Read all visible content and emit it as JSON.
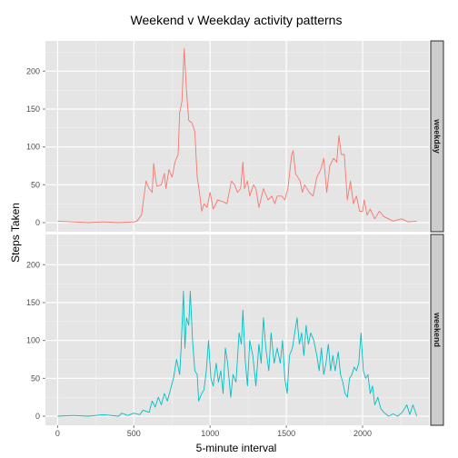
{
  "chart_data": {
    "type": "line",
    "title": "Weekend v Weekday activity patterns",
    "xlabel": "5-minute interval",
    "ylabel": "Steps Taken",
    "xlim": [
      -80,
      2435
    ],
    "ylim": [
      -12,
      240
    ],
    "x_ticks": [
      0,
      500,
      1000,
      1500,
      2000
    ],
    "y_ticks": [
      0,
      50,
      100,
      150,
      200
    ],
    "grid": true,
    "legend": "none",
    "facets": [
      {
        "label": "weekday",
        "color": "#F8766D",
        "points": [
          [
            0,
            2
          ],
          [
            100,
            1
          ],
          [
            200,
            0
          ],
          [
            300,
            1
          ],
          [
            400,
            0
          ],
          [
            500,
            1
          ],
          [
            520,
            2
          ],
          [
            550,
            10
          ],
          [
            580,
            55
          ],
          [
            600,
            45
          ],
          [
            620,
            40
          ],
          [
            630,
            78
          ],
          [
            650,
            48
          ],
          [
            680,
            50
          ],
          [
            700,
            65
          ],
          [
            710,
            45
          ],
          [
            730,
            70
          ],
          [
            750,
            60
          ],
          [
            770,
            80
          ],
          [
            790,
            90
          ],
          [
            800,
            145
          ],
          [
            815,
            160
          ],
          [
            830,
            230
          ],
          [
            845,
            175
          ],
          [
            860,
            135
          ],
          [
            880,
            132
          ],
          [
            900,
            120
          ],
          [
            915,
            60
          ],
          [
            930,
            40
          ],
          [
            945,
            15
          ],
          [
            960,
            25
          ],
          [
            980,
            20
          ],
          [
            1000,
            40
          ],
          [
            1020,
            18
          ],
          [
            1050,
            30
          ],
          [
            1080,
            28
          ],
          [
            1110,
            25
          ],
          [
            1140,
            55
          ],
          [
            1160,
            50
          ],
          [
            1180,
            40
          ],
          [
            1200,
            45
          ],
          [
            1215,
            80
          ],
          [
            1225,
            45
          ],
          [
            1245,
            55
          ],
          [
            1260,
            35
          ],
          [
            1285,
            50
          ],
          [
            1300,
            45
          ],
          [
            1320,
            20
          ],
          [
            1350,
            45
          ],
          [
            1380,
            30
          ],
          [
            1405,
            35
          ],
          [
            1425,
            25
          ],
          [
            1440,
            35
          ],
          [
            1470,
            35
          ],
          [
            1490,
            30
          ],
          [
            1510,
            45
          ],
          [
            1535,
            90
          ],
          [
            1545,
            95
          ],
          [
            1560,
            65
          ],
          [
            1590,
            55
          ],
          [
            1605,
            40
          ],
          [
            1620,
            50
          ],
          [
            1650,
            40
          ],
          [
            1675,
            35
          ],
          [
            1700,
            60
          ],
          [
            1725,
            70
          ],
          [
            1745,
            85
          ],
          [
            1765,
            40
          ],
          [
            1785,
            75
          ],
          [
            1810,
            85
          ],
          [
            1830,
            80
          ],
          [
            1845,
            115
          ],
          [
            1860,
            90
          ],
          [
            1880,
            90
          ],
          [
            1900,
            30
          ],
          [
            1920,
            55
          ],
          [
            1940,
            25
          ],
          [
            1960,
            35
          ],
          [
            1980,
            15
          ],
          [
            2000,
            15
          ],
          [
            2010,
            30
          ],
          [
            2030,
            10
          ],
          [
            2050,
            18
          ],
          [
            2080,
            5
          ],
          [
            2110,
            15
          ],
          [
            2140,
            8
          ],
          [
            2170,
            5
          ],
          [
            2200,
            2
          ],
          [
            2255,
            5
          ],
          [
            2300,
            1
          ],
          [
            2355,
            2
          ]
        ]
      },
      {
        "label": "weekend",
        "color": "#00BFC4",
        "points": [
          [
            0,
            0
          ],
          [
            100,
            1
          ],
          [
            200,
            0
          ],
          [
            300,
            2
          ],
          [
            400,
            0
          ],
          [
            420,
            4
          ],
          [
            460,
            1
          ],
          [
            500,
            4
          ],
          [
            540,
            2
          ],
          [
            560,
            8
          ],
          [
            600,
            5
          ],
          [
            620,
            20
          ],
          [
            640,
            12
          ],
          [
            660,
            25
          ],
          [
            680,
            15
          ],
          [
            700,
            30
          ],
          [
            720,
            20
          ],
          [
            740,
            35
          ],
          [
            760,
            50
          ],
          [
            780,
            75
          ],
          [
            800,
            55
          ],
          [
            810,
            90
          ],
          [
            825,
            165
          ],
          [
            835,
            90
          ],
          [
            845,
            130
          ],
          [
            860,
            120
          ],
          [
            870,
            165
          ],
          [
            885,
            100
          ],
          [
            900,
            60
          ],
          [
            915,
            55
          ],
          [
            925,
            20
          ],
          [
            945,
            30
          ],
          [
            960,
            35
          ],
          [
            975,
            60
          ],
          [
            990,
            100
          ],
          [
            1005,
            50
          ],
          [
            1020,
            40
          ],
          [
            1040,
            70
          ],
          [
            1055,
            45
          ],
          [
            1070,
            60
          ],
          [
            1085,
            30
          ],
          [
            1100,
            90
          ],
          [
            1115,
            70
          ],
          [
            1135,
            25
          ],
          [
            1150,
            55
          ],
          [
            1170,
            45
          ],
          [
            1190,
            110
          ],
          [
            1205,
            95
          ],
          [
            1215,
            140
          ],
          [
            1230,
            75
          ],
          [
            1245,
            40
          ],
          [
            1260,
            100
          ],
          [
            1280,
            80
          ],
          [
            1300,
            40
          ],
          [
            1320,
            95
          ],
          [
            1335,
            70
          ],
          [
            1350,
            130
          ],
          [
            1365,
            90
          ],
          [
            1385,
            60
          ],
          [
            1400,
            110
          ],
          [
            1420,
            70
          ],
          [
            1440,
            90
          ],
          [
            1460,
            70
          ],
          [
            1475,
            100
          ],
          [
            1490,
            50
          ],
          [
            1505,
            30
          ],
          [
            1520,
            80
          ],
          [
            1540,
            90
          ],
          [
            1555,
            110
          ],
          [
            1570,
            130
          ],
          [
            1585,
            95
          ],
          [
            1600,
            110
          ],
          [
            1615,
            80
          ],
          [
            1630,
            120
          ],
          [
            1645,
            95
          ],
          [
            1660,
            110
          ],
          [
            1680,
            100
          ],
          [
            1700,
            80
          ],
          [
            1715,
            60
          ],
          [
            1730,
            90
          ],
          [
            1745,
            55
          ],
          [
            1760,
            70
          ],
          [
            1775,
            95
          ],
          [
            1790,
            60
          ],
          [
            1805,
            80
          ],
          [
            1820,
            60
          ],
          [
            1840,
            85
          ],
          [
            1855,
            55
          ],
          [
            1870,
            45
          ],
          [
            1885,
            30
          ],
          [
            1900,
            25
          ],
          [
            1915,
            50
          ],
          [
            1930,
            55
          ],
          [
            1945,
            65
          ],
          [
            1960,
            60
          ],
          [
            1975,
            70
          ],
          [
            1990,
            110
          ],
          [
            2005,
            60
          ],
          [
            2020,
            50
          ],
          [
            2035,
            55
          ],
          [
            2050,
            30
          ],
          [
            2065,
            40
          ],
          [
            2080,
            15
          ],
          [
            2100,
            25
          ],
          [
            2120,
            10
          ],
          [
            2140,
            5
          ],
          [
            2170,
            0
          ],
          [
            2200,
            3
          ],
          [
            2230,
            0
          ],
          [
            2260,
            5
          ],
          [
            2290,
            15
          ],
          [
            2310,
            2
          ],
          [
            2330,
            15
          ],
          [
            2355,
            0
          ]
        ]
      }
    ]
  }
}
